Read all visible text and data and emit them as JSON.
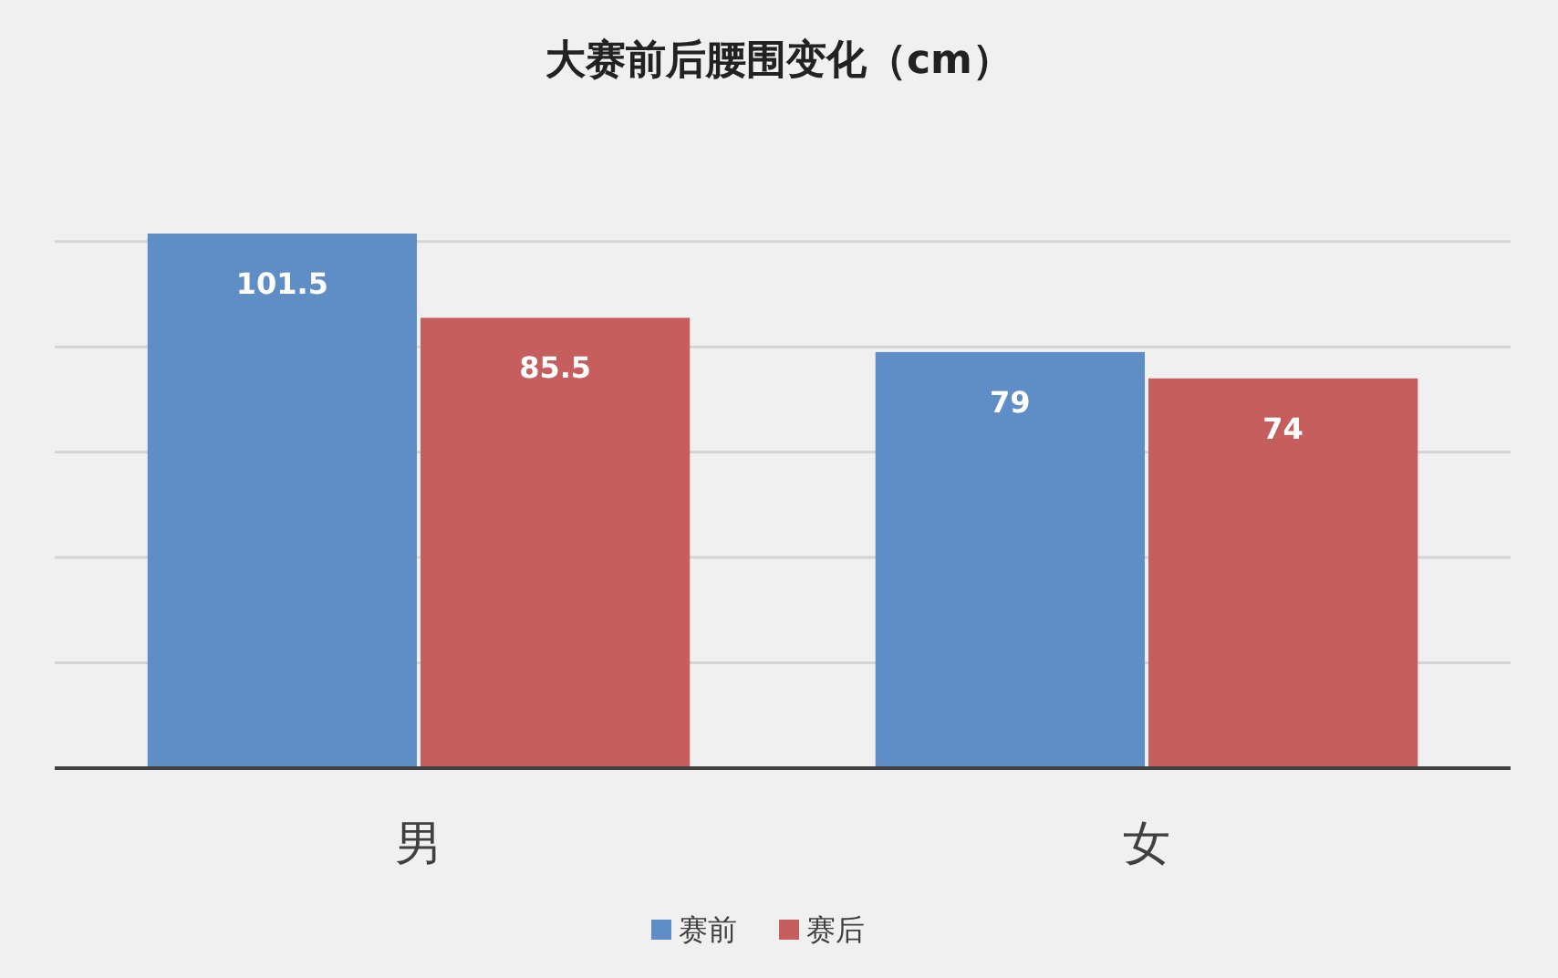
{
  "chart_data": {
    "type": "bar",
    "title": "大赛前后腰围变化（cm）",
    "categories": [
      "男",
      "女"
    ],
    "series": [
      {
        "name": "赛前",
        "color": "#5f8dc5",
        "values": [
          101.5,
          79
        ]
      },
      {
        "name": "赛后",
        "color": "#c65e5d",
        "values": [
          85.5,
          74
        ]
      }
    ],
    "yticks": [
      {
        "value": 0,
        "label": null
      },
      {
        "value": 20,
        "label": null
      },
      {
        "value": 40,
        "label": null
      },
      {
        "value": 60,
        "label": null
      },
      {
        "value": 80,
        "label": null
      },
      {
        "value": 100,
        "label": null
      }
    ],
    "tick_labels": "x",
    "grid": "y",
    "legend": "bottom",
    "data_labels": true
  }
}
